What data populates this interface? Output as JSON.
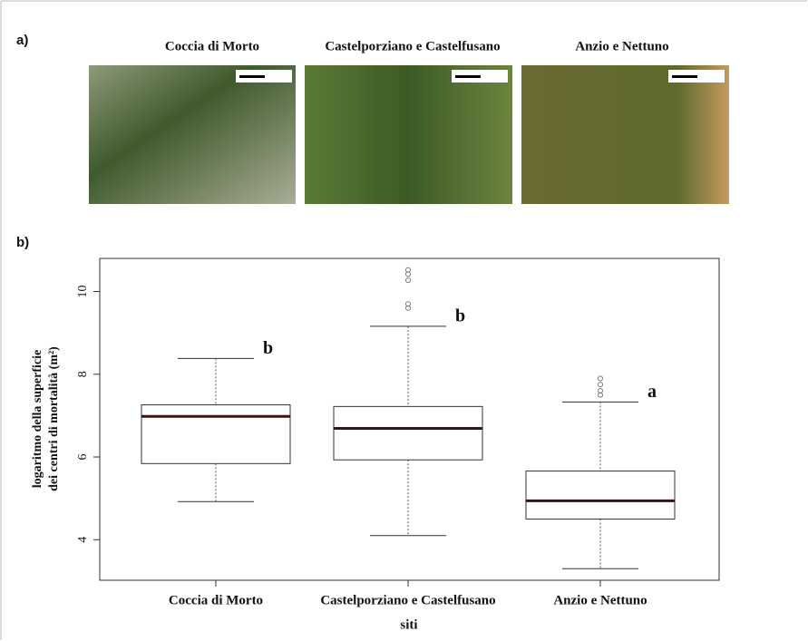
{
  "panel_a": {
    "label": "a)",
    "images": [
      "Coccia di Morto",
      "Castelporziano e Castelfusano",
      "Anzio e Nettuno"
    ]
  },
  "chart_data": {
    "type": "box",
    "panel_label": "b)",
    "y_label": [
      "logaritmo della superficie",
      "dei centri di mortalità (m²)"
    ],
    "x_label": "siti",
    "categories": [
      "Coccia di Morto",
      "Castelporziano e Castelfusano",
      "Anzio e Nettuno"
    ],
    "boxes": [
      {
        "whisker_low": 4.92,
        "q1": 5.84,
        "median": 6.98,
        "q3": 7.26,
        "whisker_high": 8.38,
        "outliers": [],
        "letter": "b"
      },
      {
        "whisker_low": 4.1,
        "q1": 5.93,
        "median": 6.69,
        "q3": 7.22,
        "whisker_high": 9.16,
        "outliers": [
          10.52,
          10.42,
          10.27,
          9.7,
          9.6
        ],
        "letter": "b"
      },
      {
        "whisker_low": 3.3,
        "q1": 4.5,
        "median": 4.94,
        "q3": 5.66,
        "whisker_high": 7.33,
        "outliers": [
          7.9,
          7.75,
          7.6,
          7.5
        ],
        "letter": "a"
      }
    ],
    "box_color": "#ffffff",
    "median_color": "#3a1414",
    "ylim": [
      3.02,
      10.8
    ],
    "yticks": [
      4,
      6,
      8,
      10
    ]
  }
}
